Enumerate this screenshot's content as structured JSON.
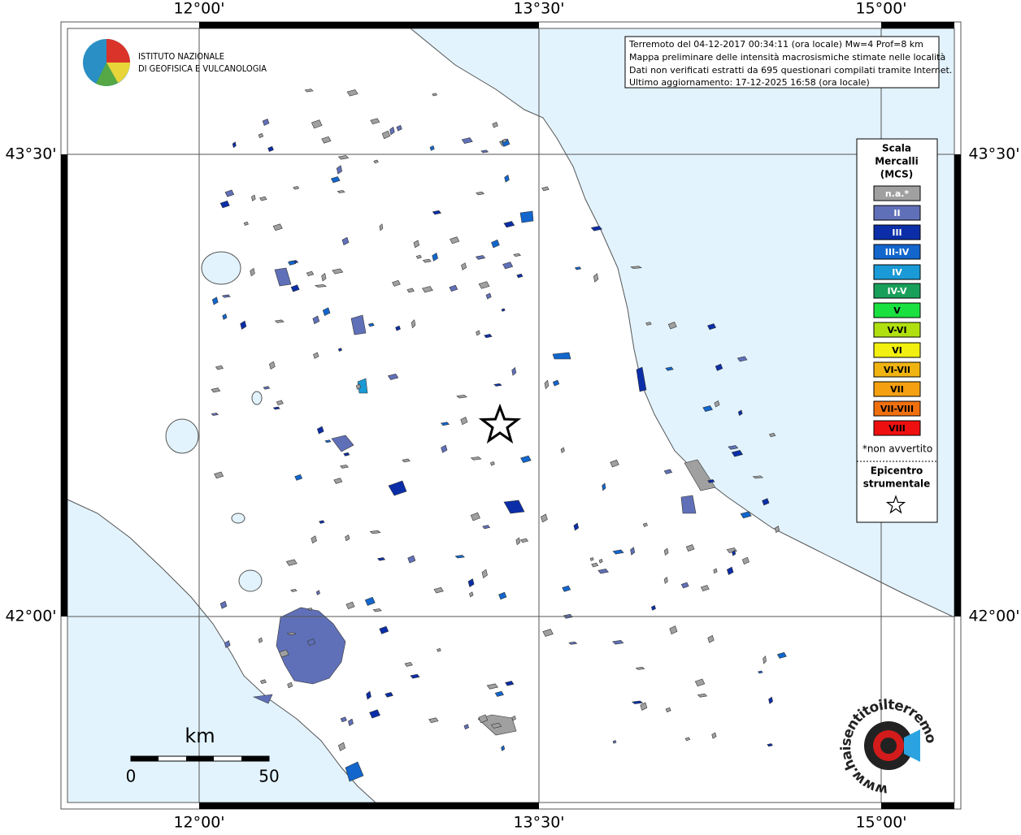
{
  "axes": {
    "top_labels": [
      "12°00'",
      "13°30'",
      "15°00'"
    ],
    "bottom_labels": [
      "12°00'",
      "13°30'",
      "15°00'"
    ],
    "left_labels": [
      "43°30'",
      "42°00'"
    ],
    "right_labels": [
      "43°30'",
      "42°00'"
    ]
  },
  "logo": {
    "lines": [
      "ISTITUTO NAZIONALE",
      "DI GEOFISICA E VULCANOLOGIA"
    ]
  },
  "info": {
    "lines": [
      "Terremoto del 04-12-2017 00:34:11 (ora locale) Mw=4 Prof=8 km",
      "Mappa preliminare delle intensità macrosismiche stimate nelle località",
      "Dati non verificati estratti da 695 questionari compilati tramite Internet.",
      "Ultimo aggiornamento: 17-12-2025 16:58 (ora locale)"
    ]
  },
  "legend": {
    "title": [
      "Scala",
      "Mercalli",
      "(MCS)"
    ],
    "items": [
      {
        "label": "n.a.*",
        "color": "#a0a0a0"
      },
      {
        "label": "II",
        "color": "#6070b8"
      },
      {
        "label": "III",
        "color": "#0b2ea8"
      },
      {
        "label": "III-IV",
        "color": "#1266cc"
      },
      {
        "label": "IV",
        "color": "#1a9ad6"
      },
      {
        "label": "IV-V",
        "color": "#18a05a"
      },
      {
        "label": "V",
        "color": "#1ae040"
      },
      {
        "label": "V-VI",
        "color": "#b0e010"
      },
      {
        "label": "VI",
        "color": "#f2f010"
      },
      {
        "label": "VI-VII",
        "color": "#f0b412"
      },
      {
        "label": "VII",
        "color": "#f5a011"
      },
      {
        "label": "VII-VIII",
        "color": "#f07010"
      },
      {
        "label": "VIII",
        "color": "#ee1010"
      }
    ],
    "note": "*non avvertito",
    "epicenter": [
      "Epicentro",
      "strumentale"
    ]
  },
  "scale_bar": {
    "unit": "km",
    "start": "0",
    "end": "50"
  },
  "badge": {
    "text": "www.haisentitoilterremoto.it"
  }
}
